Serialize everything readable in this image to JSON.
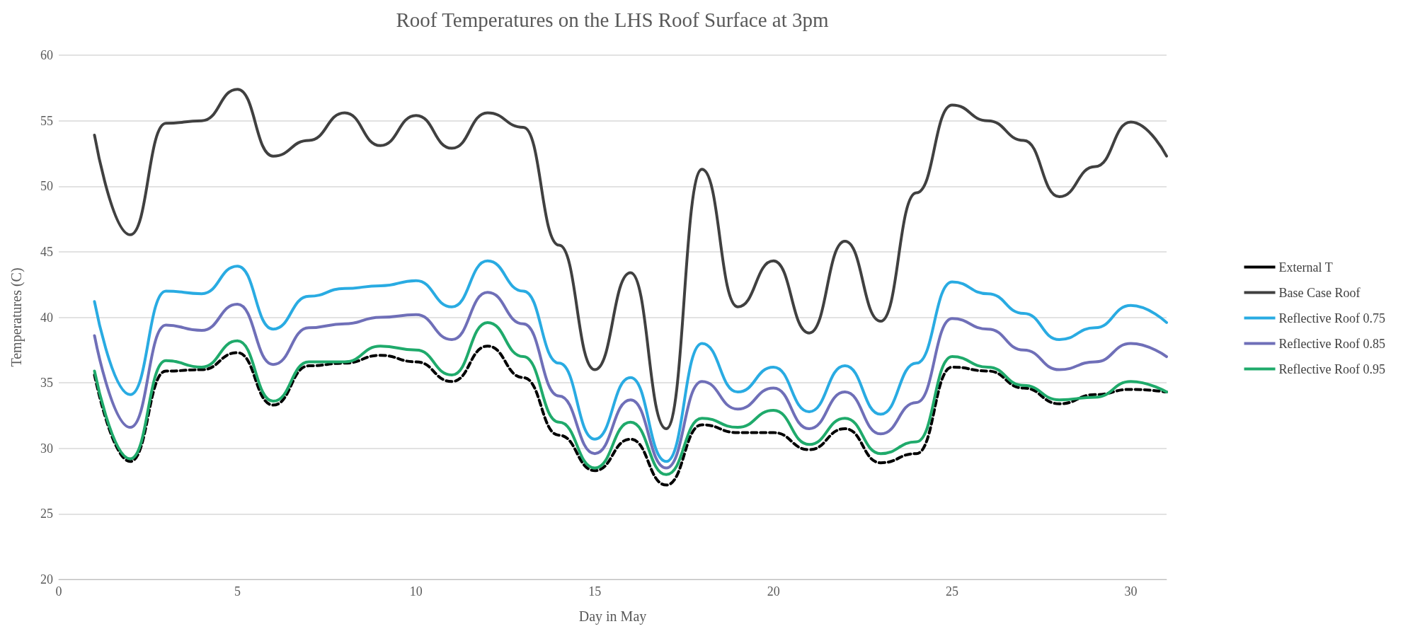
{
  "chart_data": {
    "type": "line",
    "title": "Roof Temperatures on the LHS Roof Surface at 3pm",
    "xlabel": "Day in May",
    "ylabel": "Temperatures (C)",
    "x": [
      1,
      2,
      3,
      4,
      5,
      6,
      7,
      8,
      9,
      10,
      11,
      12,
      13,
      14,
      15,
      16,
      17,
      18,
      19,
      20,
      21,
      22,
      23,
      24,
      25,
      26,
      27,
      28,
      29,
      30,
      31
    ],
    "xlim": [
      0,
      31
    ],
    "xticks": [
      0,
      5,
      10,
      15,
      20,
      25,
      30
    ],
    "ylim": [
      20,
      60
    ],
    "yticks": [
      20,
      25,
      30,
      35,
      40,
      45,
      50,
      55,
      60
    ],
    "grid": "y",
    "legend": "right",
    "marker": "none",
    "series": [
      {
        "name": "External T",
        "color": "#000000",
        "line_style": "dashed",
        "values": [
          35.6,
          29.0,
          35.9,
          36.0,
          37.3,
          33.3,
          36.3,
          36.5,
          37.1,
          36.6,
          35.1,
          37.8,
          35.4,
          31.0,
          28.3,
          30.7,
          27.2,
          31.8,
          31.2,
          31.2,
          29.9,
          31.5,
          28.9,
          29.6,
          36.2,
          35.9,
          34.6,
          33.4,
          34.1,
          34.5,
          34.3
        ]
      },
      {
        "name": "Base Case Roof",
        "color": "#404040",
        "line_style": "solid",
        "values": [
          53.9,
          46.3,
          54.8,
          55.0,
          57.4,
          52.3,
          53.5,
          55.6,
          53.1,
          55.4,
          52.9,
          55.6,
          54.5,
          45.5,
          36.0,
          43.4,
          31.5,
          51.3,
          40.8,
          44.3,
          38.8,
          45.8,
          39.7,
          49.5,
          56.2,
          55.0,
          53.5,
          49.2,
          51.5,
          54.9,
          52.3
        ]
      },
      {
        "name": "Reflective Roof 0.75",
        "color": "#29abe2",
        "line_style": "solid",
        "values": [
          41.2,
          34.1,
          42.0,
          41.8,
          43.9,
          39.1,
          41.6,
          42.2,
          42.4,
          42.8,
          40.8,
          44.3,
          42.0,
          36.5,
          30.7,
          35.4,
          29.0,
          38.0,
          34.3,
          36.2,
          32.8,
          36.3,
          32.6,
          36.5,
          42.7,
          41.8,
          40.3,
          38.3,
          39.2,
          40.9,
          39.6
        ]
      },
      {
        "name": "Reflective Roof 0.85",
        "color": "#6f6fb8",
        "line_style": "solid",
        "values": [
          38.6,
          31.6,
          39.4,
          39.0,
          41.0,
          36.4,
          39.2,
          39.5,
          40.0,
          40.2,
          38.3,
          41.9,
          39.5,
          34.0,
          29.6,
          33.7,
          28.5,
          35.1,
          33.0,
          34.6,
          31.5,
          34.3,
          31.1,
          33.5,
          39.9,
          39.1,
          37.5,
          36.0,
          36.6,
          38.0,
          37.0
        ]
      },
      {
        "name": "Reflective Roof 0.95",
        "color": "#1faa6b",
        "line_style": "solid",
        "values": [
          35.9,
          29.2,
          36.7,
          36.2,
          38.2,
          33.6,
          36.6,
          36.6,
          37.8,
          37.5,
          35.6,
          39.6,
          37.0,
          32.0,
          28.5,
          32.0,
          28.0,
          32.3,
          31.6,
          32.9,
          30.3,
          32.3,
          29.6,
          30.5,
          37.0,
          36.2,
          34.8,
          33.7,
          33.9,
          35.1,
          34.3
        ]
      }
    ]
  }
}
